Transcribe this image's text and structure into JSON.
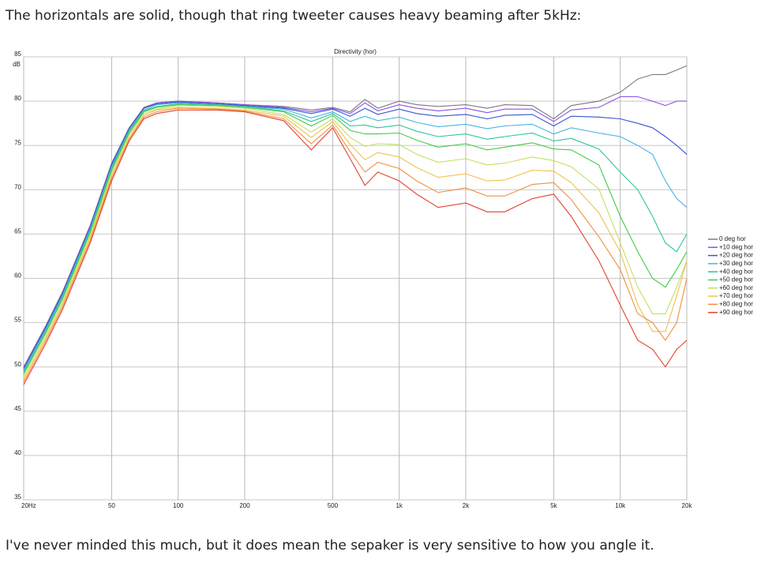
{
  "post": {
    "intro": "The horizontals are solid, though that ring tweeter causes heavy beaming after 5kHz:",
    "outro": "I've never minded this much, but it does mean the sepaker is very sensitive to how you angle it."
  },
  "chart_data": {
    "type": "line",
    "title": "Directivity (hor)",
    "y_label": "dB",
    "x_scale": "log",
    "grid": true,
    "legend": "right",
    "x": [
      20,
      25,
      30,
      40,
      50,
      60,
      70,
      80,
      100,
      150,
      200,
      300,
      400,
      500,
      600,
      700,
      800,
      1000,
      1200,
      1500,
      2000,
      2500,
      3000,
      4000,
      5000,
      6000,
      8000,
      10000,
      12000,
      14000,
      16000,
      18000,
      20000
    ],
    "xlim": [
      20,
      20000
    ],
    "xticks": [
      {
        "value": 20,
        "label": "20Hz"
      },
      50,
      100,
      200,
      500,
      {
        "value": 1000,
        "label": "1k"
      },
      {
        "value": 2000,
        "label": "2k"
      },
      {
        "value": 5000,
        "label": "5k"
      },
      {
        "value": 10000,
        "label": "10k"
      },
      {
        "value": 20000,
        "label": "20k"
      }
    ],
    "ylim": [
      35,
      85
    ],
    "yticks": [
      35,
      40,
      45,
      50,
      55,
      60,
      65,
      70,
      75,
      80,
      85
    ],
    "series": [
      {
        "name": "0 deg hor",
        "color": "#7a7a7a",
        "values": [
          50,
          54.5,
          58.5,
          66,
          73,
          77,
          79.3,
          79.8,
          80,
          79.8,
          79.6,
          79.4,
          79,
          79.3,
          78.8,
          80.2,
          79.2,
          80,
          79.6,
          79.4,
          79.6,
          79.2,
          79.6,
          79.5,
          78,
          79.5,
          80,
          81,
          82.5,
          83,
          83,
          83.5,
          84
        ]
      },
      {
        "name": "+10 deg hor",
        "color": "#8a52e6",
        "values": [
          49.9,
          54.4,
          58.4,
          65.9,
          72.9,
          76.9,
          79.2,
          79.8,
          80,
          79.8,
          79.6,
          79.3,
          78.8,
          79.2,
          78.6,
          79.8,
          78.9,
          79.6,
          79.2,
          78.9,
          79.2,
          78.7,
          79.1,
          79.1,
          77.7,
          79,
          79.3,
          80.5,
          80.5,
          80,
          79.5,
          80,
          80
        ]
      },
      {
        "name": "+20 deg hor",
        "color": "#3556cc",
        "values": [
          49.8,
          54.3,
          58.3,
          65.8,
          72.8,
          76.9,
          79.2,
          79.7,
          79.9,
          79.7,
          79.5,
          79.2,
          78.6,
          79.1,
          78.3,
          79.2,
          78.5,
          79.1,
          78.6,
          78.3,
          78.5,
          78,
          78.4,
          78.5,
          77.2,
          78.3,
          78.2,
          78,
          77.5,
          77,
          76,
          75,
          74
        ]
      },
      {
        "name": "+30 deg hor",
        "color": "#45b4e6",
        "values": [
          49.6,
          54.1,
          58.1,
          65.6,
          72.6,
          76.7,
          79,
          79.6,
          79.8,
          79.6,
          79.4,
          79.1,
          78.1,
          78.8,
          77.7,
          78.3,
          77.8,
          78.2,
          77.6,
          77.1,
          77.4,
          76.9,
          77.2,
          77.4,
          76.3,
          77,
          76.4,
          76,
          75,
          74,
          71,
          69,
          68
        ]
      },
      {
        "name": "+40 deg hor",
        "color": "#2fc49a",
        "values": [
          49.4,
          53.9,
          57.9,
          65.4,
          72.4,
          76.6,
          78.9,
          79.4,
          79.7,
          79.6,
          79.4,
          78.9,
          77.7,
          78.6,
          77.2,
          77.3,
          77,
          77.3,
          76.6,
          76,
          76.3,
          75.7,
          76,
          76.4,
          75.5,
          75.8,
          74.6,
          72,
          70,
          67,
          64,
          63,
          65
        ]
      },
      {
        "name": "+50 deg hor",
        "color": "#44cc44",
        "values": [
          49.2,
          53.7,
          57.7,
          65.2,
          72.2,
          76.4,
          78.8,
          79.3,
          79.6,
          79.5,
          79.3,
          78.8,
          77.2,
          78.4,
          76.7,
          76.3,
          76.3,
          76.4,
          75.6,
          74.8,
          75.2,
          74.5,
          74.8,
          75.3,
          74.6,
          74.5,
          72.8,
          67,
          63,
          60,
          59,
          61,
          63
        ]
      },
      {
        "name": "+60 deg hor",
        "color": "#c4e060",
        "values": [
          48.9,
          53.4,
          57.4,
          64.9,
          71.9,
          76.2,
          78.6,
          79.1,
          79.5,
          79.4,
          79.2,
          78.5,
          76.5,
          78,
          75.9,
          74.9,
          75.2,
          75.1,
          74,
          73.1,
          73.5,
          72.8,
          73,
          73.7,
          73.3,
          72.6,
          70.1,
          64,
          59,
          56,
          56,
          59,
          62
        ]
      },
      {
        "name": "+70 deg hor",
        "color": "#efc250",
        "values": [
          48.6,
          53.1,
          57.1,
          64.6,
          71.6,
          75.9,
          78.4,
          79,
          79.3,
          79.2,
          79,
          78.3,
          75.9,
          77.7,
          75.1,
          73.4,
          74.2,
          73.7,
          72.5,
          71.4,
          71.8,
          71,
          71.1,
          72.2,
          72.1,
          70.8,
          67.4,
          63,
          57,
          54,
          54,
          58,
          62
        ]
      },
      {
        "name": "+80 deg hor",
        "color": "#f09040",
        "values": [
          48.3,
          52.8,
          56.8,
          64.3,
          71.3,
          75.7,
          78.2,
          78.8,
          79.2,
          79.1,
          78.9,
          78,
          75.2,
          77.3,
          74.3,
          72,
          73.1,
          72.4,
          71,
          69.7,
          70.2,
          69.3,
          69.3,
          70.6,
          70.8,
          68.9,
          64.7,
          61,
          56,
          55,
          53,
          55,
          60
        ]
      },
      {
        "name": "+90 deg hor",
        "color": "#e2412f",
        "values": [
          48,
          52.5,
          56.5,
          64,
          71,
          75.5,
          78,
          78.6,
          79,
          79,
          78.8,
          77.8,
          74.5,
          77,
          73.5,
          70.5,
          72,
          71,
          69.5,
          68,
          68.5,
          67.5,
          67.5,
          69,
          69.5,
          67,
          62,
          57,
          53,
          52,
          50,
          52,
          53
        ]
      }
    ]
  }
}
